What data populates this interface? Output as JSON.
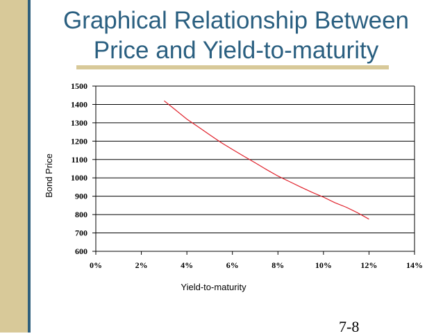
{
  "slide": {
    "title_line1": "Graphical Relationship Between",
    "title_line2": "Price and Yield-to-maturity",
    "page_number": "7-8",
    "colors": {
      "title": "#2a5f80",
      "accent": "#d8c999",
      "sidebar_line": "#2f5f7c",
      "series": "#e0202a"
    }
  },
  "chart_data": {
    "type": "line",
    "title": "",
    "xlabel": "Yield-to-maturity",
    "ylabel": "Bond Price",
    "xlim": [
      0,
      0.14
    ],
    "ylim": [
      600,
      1500
    ],
    "x_ticks": [
      0,
      0.02,
      0.04,
      0.06,
      0.08,
      0.1,
      0.12,
      0.14
    ],
    "x_tick_labels": [
      "0%",
      "2%",
      "4%",
      "6%",
      "8%",
      "10%",
      "12%",
      "14%"
    ],
    "y_ticks": [
      600,
      700,
      800,
      900,
      1000,
      1100,
      1200,
      1300,
      1400,
      1500
    ],
    "y_tick_labels": [
      "600",
      "700",
      "800",
      "900",
      "1000",
      "1100",
      "1200",
      "1300",
      "1400",
      "1500"
    ],
    "grid": "horizontal",
    "legend": "none",
    "series": [
      {
        "x": [
          0.03,
          0.035,
          0.04,
          0.045,
          0.05,
          0.055,
          0.06,
          0.065,
          0.07,
          0.075,
          0.08,
          0.085,
          0.09,
          0.095,
          0.1,
          0.105,
          0.11,
          0.115,
          0.12
        ],
        "y": [
          1420,
          1370,
          1320,
          1278,
          1235,
          1193,
          1155,
          1118,
          1082,
          1045,
          1010,
          980,
          950,
          921,
          895,
          865,
          840,
          810,
          775
        ]
      }
    ]
  }
}
